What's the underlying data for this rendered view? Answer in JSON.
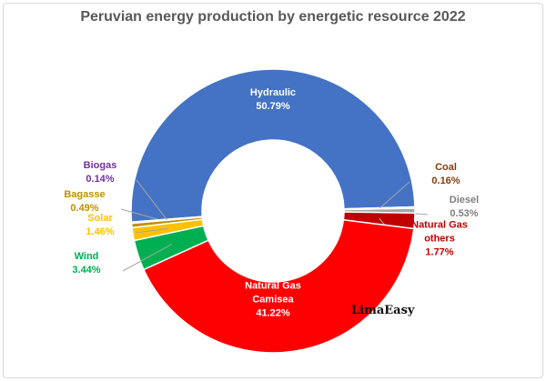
{
  "chart_data": {
    "type": "donut",
    "title": "Peruvian energy production by energetic resource 2022",
    "categories": [
      "Hydraulic",
      "Coal",
      "Diesel",
      "Natural Gas others",
      "Natural Gas Camisea",
      "Wind",
      "Solar",
      "Bagasse",
      "Biogas"
    ],
    "values": [
      50.79,
      0.16,
      0.53,
      1.77,
      41.22,
      3.44,
      1.46,
      0.49,
      0.14
    ],
    "value_labels": [
      "50.79%",
      "0.16%",
      "0.53%",
      "1.77%",
      "41.22%",
      "3.44%",
      "1.46%",
      "0.49%",
      "0.14%"
    ],
    "colors": [
      "#4472c4",
      "#843c0c",
      "#a5a5a5",
      "#c00000",
      "#ff0000",
      "#00b050",
      "#ffc000",
      "#bf9000",
      "#7030a0"
    ],
    "watermark": "LimaEasy"
  }
}
